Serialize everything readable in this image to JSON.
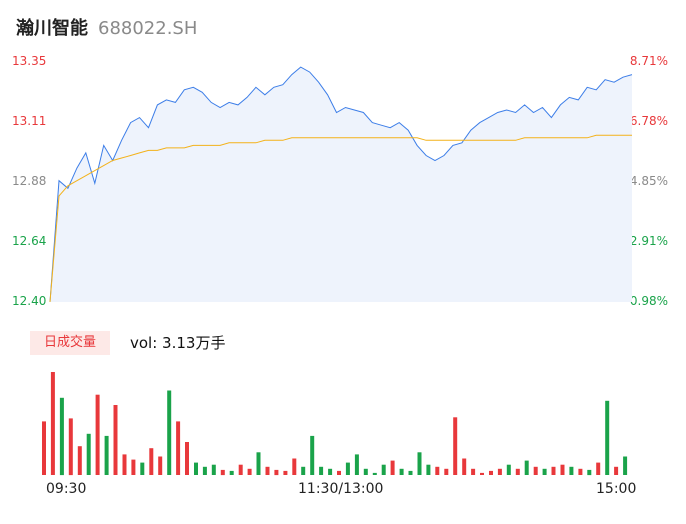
{
  "stock": {
    "name": "瀚川智能",
    "code": "688022.SH"
  },
  "volume_panel": {
    "tag": "日成交量",
    "summary": "vol: 3.13万手"
  },
  "colors": {
    "price_line": "#3d7ee8",
    "avg_line": "#f3b21a",
    "up": "#e8383b",
    "down": "#1aa34a",
    "neutral": "#8a8a8a",
    "area": "#eef3fc"
  },
  "chart_data": {
    "type": "line",
    "title": "",
    "y_left_ticks": [
      "13.35",
      "13.11",
      "12.88",
      "12.64",
      "12.40"
    ],
    "y_right_ticks": [
      "8.71%",
      "6.78%",
      "4.85%",
      "2.91%",
      "0.98%"
    ],
    "x_ticks": [
      "09:30",
      "11:30/13:00",
      "15:00"
    ],
    "ylim": [
      12.4,
      13.35
    ],
    "price_series": [
      12.4,
      12.88,
      12.85,
      12.93,
      12.99,
      12.87,
      13.02,
      12.96,
      13.04,
      13.11,
      13.13,
      13.09,
      13.18,
      13.2,
      13.19,
      13.24,
      13.25,
      13.23,
      13.19,
      13.17,
      13.19,
      13.18,
      13.21,
      13.25,
      13.22,
      13.25,
      13.26,
      13.3,
      13.33,
      13.31,
      13.27,
      13.22,
      13.15,
      13.17,
      13.16,
      13.15,
      13.11,
      13.1,
      13.09,
      13.11,
      13.08,
      13.02,
      12.98,
      12.96,
      12.98,
      13.02,
      13.03,
      13.08,
      13.11,
      13.13,
      13.15,
      13.16,
      13.15,
      13.18,
      13.15,
      13.17,
      13.13,
      13.18,
      13.21,
      13.2,
      13.25,
      13.24,
      13.28,
      13.27,
      13.29,
      13.3
    ],
    "avg_series": [
      12.4,
      12.82,
      12.86,
      12.88,
      12.9,
      12.92,
      12.94,
      12.96,
      12.97,
      12.98,
      12.99,
      13.0,
      13.0,
      13.01,
      13.01,
      13.01,
      13.02,
      13.02,
      13.02,
      13.02,
      13.03,
      13.03,
      13.03,
      13.03,
      13.04,
      13.04,
      13.04,
      13.05,
      13.05,
      13.05,
      13.05,
      13.05,
      13.05,
      13.05,
      13.05,
      13.05,
      13.05,
      13.05,
      13.05,
      13.05,
      13.05,
      13.05,
      13.04,
      13.04,
      13.04,
      13.04,
      13.04,
      13.04,
      13.04,
      13.04,
      13.04,
      13.04,
      13.04,
      13.05,
      13.05,
      13.05,
      13.05,
      13.05,
      13.05,
      13.05,
      13.05,
      13.06,
      13.06,
      13.06,
      13.06,
      13.06
    ],
    "volume_series": [
      0.52,
      1.0,
      0.75,
      0.55,
      0.28,
      0.4,
      0.78,
      0.38,
      0.68,
      0.2,
      0.15,
      0.12,
      0.26,
      0.18,
      0.82,
      0.52,
      0.32,
      0.12,
      0.08,
      0.1,
      0.05,
      0.04,
      0.1,
      0.06,
      0.22,
      0.08,
      0.05,
      0.04,
      0.16,
      0.08,
      0.38,
      0.08,
      0.06,
      0.04,
      0.12,
      0.2,
      0.06,
      0.02,
      0.1,
      0.14,
      0.06,
      0.04,
      0.22,
      0.1,
      0.08,
      0.06,
      0.56,
      0.16,
      0.06,
      0.02,
      0.04,
      0.06,
      0.1,
      0.06,
      0.14,
      0.08,
      0.06,
      0.08,
      0.1,
      0.08,
      0.06,
      0.05,
      0.12,
      0.72,
      0.08,
      0.18
    ]
  }
}
